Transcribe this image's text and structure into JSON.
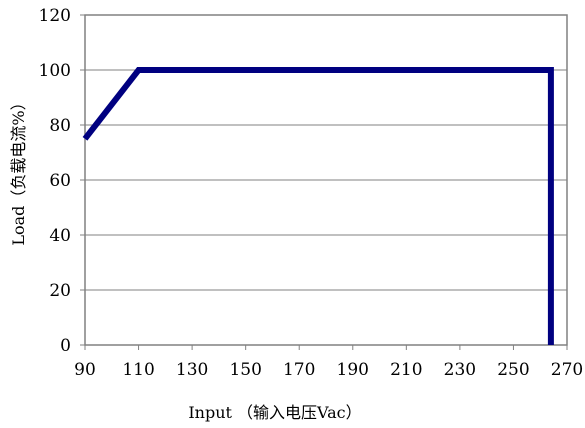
{
  "chart_data": {
    "type": "line",
    "xlabel": "Input （输入电压Vac）",
    "ylabel": "Load（负载电流%）",
    "xlim": [
      90,
      270
    ],
    "ylim": [
      0,
      120
    ],
    "x_ticks": [
      "90",
      "110",
      "130",
      "150",
      "170",
      "190",
      "210",
      "230",
      "250",
      "270"
    ],
    "y_ticks": [
      "0",
      "20",
      "40",
      "60",
      "80",
      "100",
      "120"
    ],
    "grid": "horizontal",
    "legend": "none",
    "series": [
      {
        "color": "#000080",
        "points": [
          [
            90,
            75
          ],
          [
            110,
            100
          ],
          [
            264,
            100
          ],
          [
            264,
            0
          ]
        ]
      }
    ]
  }
}
